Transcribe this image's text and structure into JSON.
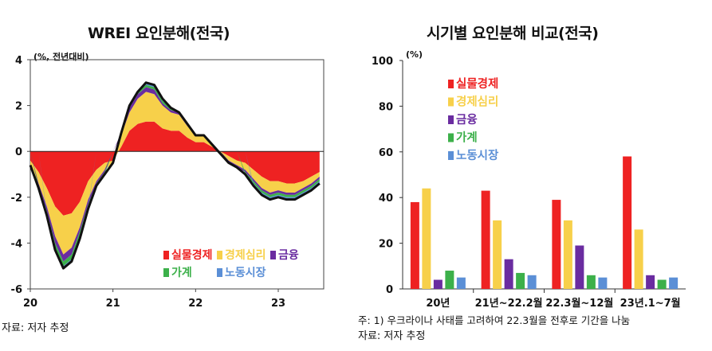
{
  "left_title": "WREI 요인분해(전국)",
  "right_title": "시기별 요인분해 비교(전국)",
  "left_unit": "(%, 전년대비)",
  "right_unit": "(%)",
  "left_source": "자료: 저자 추정",
  "right_footnote": "주: 1) 우크라이나 사태를 고려하여 22.3월을 전후로 기간을 나눔",
  "right_source": "자료: 저자 추정",
  "colors": {
    "labor_market": "#ee2222",
    "economic_sentiment": "#f7d04a",
    "finance": "#6a2ca0",
    "household": "#3cb04a",
    "employment": "#5b8fd6",
    "index_line": "#111111"
  },
  "chart_data": [
    {
      "type": "area",
      "title": "WREI 요인분해(전국)",
      "ylabel": "(%, 전년대비)",
      "ylim": [
        -6,
        4
      ],
      "yticks": [
        "4",
        "2",
        "0",
        "-2",
        "-4",
        "-6"
      ],
      "xticks": [
        "20",
        "21",
        "22",
        "23"
      ],
      "legend": [
        "실물경제",
        "경제심리",
        "금융",
        "가계",
        "노동시장"
      ],
      "legend_placement": "bottom-right",
      "x": [
        2020.0,
        2020.1,
        2020.2,
        2020.3,
        2020.4,
        2020.5,
        2020.6,
        2020.7,
        2020.8,
        2020.9,
        2021.0,
        2021.1,
        2021.2,
        2021.3,
        2021.4,
        2021.5,
        2021.6,
        2021.7,
        2021.8,
        2021.9,
        2022.0,
        2022.1,
        2022.2,
        2022.3,
        2022.4,
        2022.5,
        2022.6,
        2022.7,
        2022.8,
        2022.9,
        2023.0,
        2023.1,
        2023.2,
        2023.3,
        2023.4,
        2023.5
      ],
      "series": [
        {
          "name": "실물경제",
          "values": [
            -0.4,
            -0.9,
            -1.6,
            -2.4,
            -2.8,
            -2.7,
            -2.2,
            -1.3,
            -0.8,
            -0.5,
            -0.4,
            0.2,
            0.9,
            1.2,
            1.3,
            1.3,
            1.0,
            0.9,
            0.9,
            0.6,
            0.4,
            0.4,
            0.2,
            0.0,
            -0.2,
            -0.4,
            -0.5,
            -0.8,
            -1.1,
            -1.3,
            -1.3,
            -1.4,
            -1.4,
            -1.3,
            -1.1,
            -0.9
          ]
        },
        {
          "name": "경제심리",
          "values": [
            -0.2,
            -0.5,
            -0.8,
            -1.3,
            -1.7,
            -1.5,
            -1.1,
            -0.8,
            -0.5,
            -0.3,
            -0.1,
            0.5,
            0.8,
            1.1,
            1.3,
            1.2,
            1.0,
            0.8,
            0.7,
            0.5,
            0.3,
            0.3,
            0.1,
            -0.1,
            -0.2,
            -0.2,
            -0.3,
            -0.4,
            -0.5,
            -0.5,
            -0.4,
            -0.4,
            -0.4,
            -0.3,
            -0.3,
            -0.2
          ]
        },
        {
          "name": "금융",
          "values": [
            0.0,
            -0.1,
            -0.2,
            -0.3,
            -0.3,
            -0.3,
            -0.2,
            -0.2,
            -0.1,
            -0.1,
            0.0,
            0.1,
            0.2,
            0.2,
            0.2,
            0.2,
            0.1,
            0.1,
            0.1,
            0.1,
            0.0,
            0.0,
            0.0,
            0.0,
            -0.1,
            -0.1,
            -0.1,
            -0.1,
            -0.1,
            -0.1,
            -0.1,
            -0.1,
            -0.1,
            -0.1,
            -0.1,
            -0.1
          ]
        },
        {
          "name": "가계",
          "values": [
            0.0,
            -0.1,
            -0.1,
            -0.2,
            -0.2,
            -0.2,
            -0.2,
            -0.1,
            -0.1,
            -0.1,
            0.0,
            0.0,
            0.1,
            0.1,
            0.1,
            0.1,
            0.1,
            0.1,
            0.0,
            0.0,
            0.0,
            0.0,
            0.0,
            0.0,
            0.0,
            0.0,
            -0.1,
            -0.1,
            -0.1,
            -0.1,
            -0.1,
            -0.1,
            -0.1,
            -0.1,
            -0.1,
            -0.1
          ]
        },
        {
          "name": "노동시장",
          "values": [
            0.0,
            0.0,
            -0.1,
            -0.1,
            -0.1,
            -0.1,
            -0.1,
            -0.1,
            0.0,
            0.0,
            0.0,
            0.0,
            0.0,
            0.0,
            0.1,
            0.1,
            0.1,
            0.0,
            0.0,
            0.0,
            0.0,
            0.0,
            0.0,
            0.0,
            0.0,
            0.0,
            0.0,
            -0.1,
            -0.1,
            -0.1,
            -0.1,
            -0.1,
            -0.1,
            -0.1,
            -0.1,
            -0.1
          ]
        }
      ],
      "line": {
        "name": "WREI",
        "values": [
          -0.6,
          -1.6,
          -2.8,
          -4.3,
          -5.1,
          -4.8,
          -3.8,
          -2.5,
          -1.5,
          -1.0,
          -0.5,
          0.8,
          2.0,
          2.6,
          3.0,
          2.9,
          2.3,
          1.9,
          1.7,
          1.2,
          0.7,
          0.7,
          0.3,
          -0.1,
          -0.5,
          -0.7,
          -1.0,
          -1.5,
          -1.9,
          -2.1,
          -2.0,
          -2.1,
          -2.1,
          -1.9,
          -1.7,
          -1.4
        ]
      }
    },
    {
      "type": "bar",
      "title": "시기별 요인분해 비교(전국)",
      "ylabel": "(%)",
      "ylim": [
        0,
        100
      ],
      "yticks": [
        "100",
        "80",
        "60",
        "40",
        "20",
        "0"
      ],
      "categories": [
        "20년",
        "21년~22.2월",
        "22.3월~12월",
        "23년.1~7월"
      ],
      "legend_placement": "top-left",
      "series": [
        {
          "name": "실물경제",
          "values": [
            38,
            43,
            39,
            58
          ]
        },
        {
          "name": "경제심리",
          "values": [
            44,
            30,
            30,
            26
          ]
        },
        {
          "name": "금융",
          "values": [
            4,
            13,
            19,
            6
          ]
        },
        {
          "name": "가계",
          "values": [
            8,
            7,
            6,
            4
          ]
        },
        {
          "name": "노동시장",
          "values": [
            5,
            6,
            5,
            5
          ]
        }
      ]
    }
  ]
}
